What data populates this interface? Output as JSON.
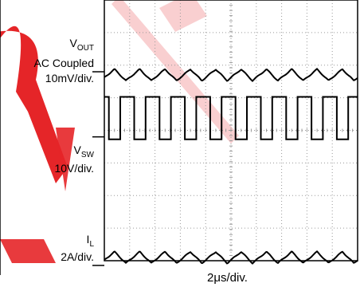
{
  "chart_data": {
    "type": "line",
    "title": "",
    "x_axis": {
      "label": "2μs/div.",
      "divisions": 10,
      "grid": true,
      "units_per_div_us": 2,
      "range_us": [
        0,
        20
      ]
    },
    "y_axis": {
      "divisions": 8,
      "grid": true
    },
    "switching_frequency_mhz": 0.5,
    "series": [
      {
        "name_main": "V",
        "name_sub": "OUT",
        "line2": "AC Coupled",
        "scale": "10mV/div.",
        "shape": "triangle",
        "marker_div": 2.3,
        "amplitude_div": 0.35,
        "periods_visible": 10,
        "ripple_mv_pp": 7
      },
      {
        "name_main": "V",
        "name_sub": "SW",
        "scale": "10V/div.",
        "shape": "square",
        "marker_div": 4.2,
        "high_level_div": 1.3,
        "periods_visible": 10,
        "amplitude_v": 13
      },
      {
        "name_main": "I",
        "name_sub": "L",
        "scale": "2A/div.",
        "shape": "triangle",
        "marker_div": 7.9,
        "amplitude_div": 0.35,
        "periods_visible": 10,
        "ripple_a_pp": 1.4
      }
    ],
    "colors": {
      "trace": "#000000",
      "grid": "#9a9a9a",
      "border": "#000000"
    }
  }
}
